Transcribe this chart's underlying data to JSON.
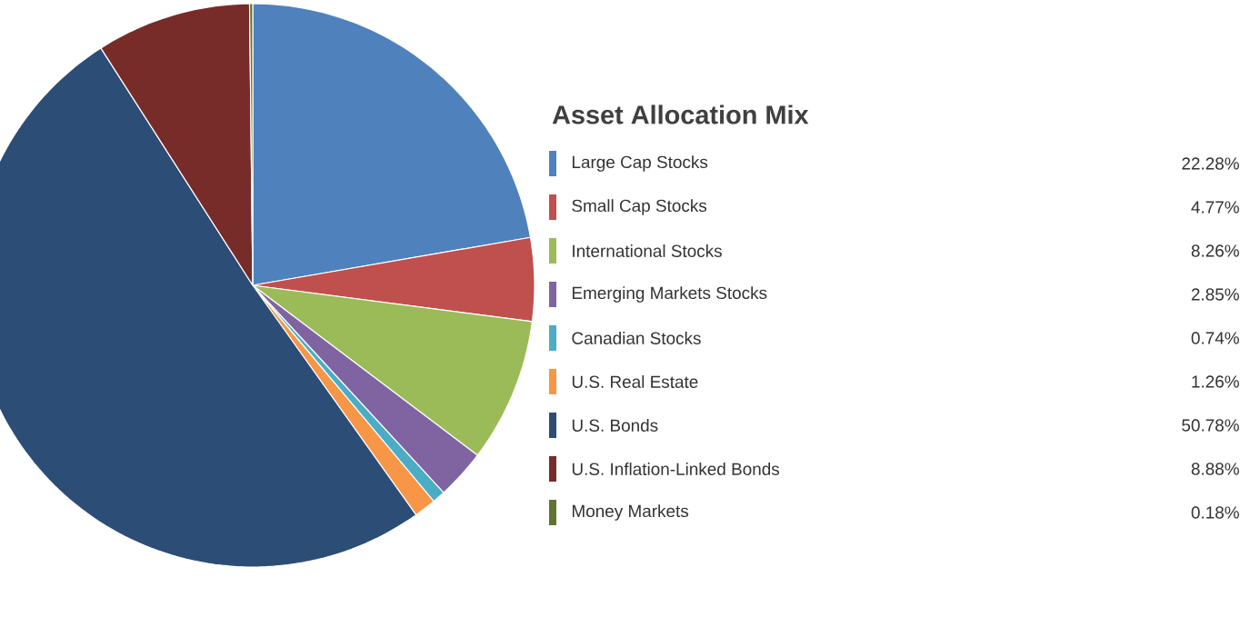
{
  "chart_data": {
    "type": "pie",
    "title": "Asset Allocation Mix",
    "categories": [
      "Large Cap Stocks",
      "Small Cap Stocks",
      "International Stocks",
      "Emerging Markets Stocks",
      "Canadian Stocks",
      "U.S. Real Estate",
      "U.S. Bonds",
      "U.S. Inflation-Linked  Bonds",
      "Money Markets"
    ],
    "values": [
      22.28,
      4.77,
      8.26,
      2.85,
      0.74,
      1.26,
      50.78,
      8.88,
      0.18
    ],
    "value_labels": [
      "22.28%",
      "4.77%",
      "8.26%",
      "2.85%",
      "0.74%",
      "1.26%",
      "50.78%",
      "8.88%",
      "0.18%"
    ],
    "colors": [
      "#4f81bd",
      "#c0504d",
      "#9bbb59",
      "#8064a2",
      "#4bacc6",
      "#f79646",
      "#2c4d75",
      "#772c2a",
      "#5f7530"
    ],
    "legend": "right"
  }
}
